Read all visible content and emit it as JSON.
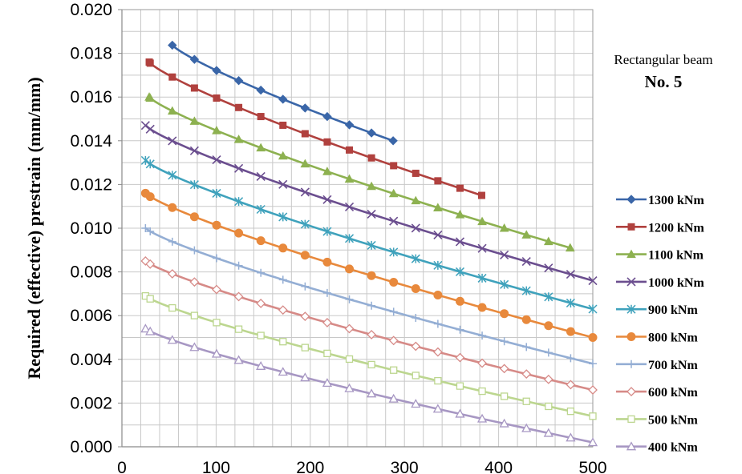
{
  "chart_data": {
    "type": "line",
    "title": "",
    "xlabel": "",
    "ylabel": "Required (effective) prestrain (mm/mm)",
    "xlim": [
      0,
      500
    ],
    "ylim": [
      0,
      0.02
    ],
    "x_ticks": [
      "0",
      "100",
      "200",
      "300",
      "400",
      "500"
    ],
    "y_ticks": [
      "0.000",
      "0.002",
      "0.004",
      "0.006",
      "0.008",
      "0.010",
      "0.012",
      "0.014",
      "0.016",
      "0.018",
      "0.020"
    ],
    "grid": true,
    "legend_position": "right",
    "annotation": {
      "line1": "Rectangular beam",
      "line2": "No. 5"
    },
    "series": [
      {
        "name": "1300 kNm",
        "color": "#3a66a8",
        "marker": "diamond",
        "x_start": 53,
        "x_end": 288,
        "y_start": 0.0184,
        "y_end": 0.014,
        "curve": 0.82
      },
      {
        "name": "1200 kNm",
        "color": "#b0413e",
        "marker": "square",
        "x_start": 29,
        "x_end": 382,
        "y_start": 0.0176,
        "y_end": 0.0115,
        "curve": 0.82
      },
      {
        "name": "1100 kNm",
        "color": "#8db150",
        "marker": "triangle",
        "x_start": 29,
        "x_end": 476,
        "y_start": 0.016,
        "y_end": 0.0091,
        "curve": 0.82
      },
      {
        "name": "1000 kNm",
        "color": "#6b4e8f",
        "marker": "x",
        "x_start": 25,
        "x_end": 500,
        "y_start": 0.0147,
        "y_end": 0.0076,
        "curve": 0.82
      },
      {
        "name": "900 kNm",
        "color": "#3fa2bc",
        "marker": "asterisk",
        "x_start": 25,
        "x_end": 500,
        "y_start": 0.0131,
        "y_end": 0.0063,
        "curve": 0.82
      },
      {
        "name": "800 kNm",
        "color": "#e8893c",
        "marker": "circle",
        "x_start": 25,
        "x_end": 500,
        "y_start": 0.0116,
        "y_end": 0.005,
        "curve": 0.82
      },
      {
        "name": "700 kNm",
        "color": "#94aed4",
        "marker": "plus",
        "x_start": 25,
        "x_end": 500,
        "y_start": 0.01,
        "y_end": 0.0038,
        "curve": 0.82
      },
      {
        "name": "600 kNm",
        "color": "#d68a87",
        "marker": "diamond-open",
        "x_start": 25,
        "x_end": 500,
        "y_start": 0.0085,
        "y_end": 0.0026,
        "curve": 0.82
      },
      {
        "name": "500 kNm",
        "color": "#bcd68f",
        "marker": "square-open",
        "x_start": 25,
        "x_end": 500,
        "y_start": 0.0069,
        "y_end": 0.0014,
        "curve": 0.82
      },
      {
        "name": "400 kNm",
        "color": "#a797c3",
        "marker": "triangle-open",
        "x_start": 25,
        "x_end": 500,
        "y_start": 0.0054,
        "y_end": 0.0002,
        "curve": 0.82
      }
    ]
  }
}
